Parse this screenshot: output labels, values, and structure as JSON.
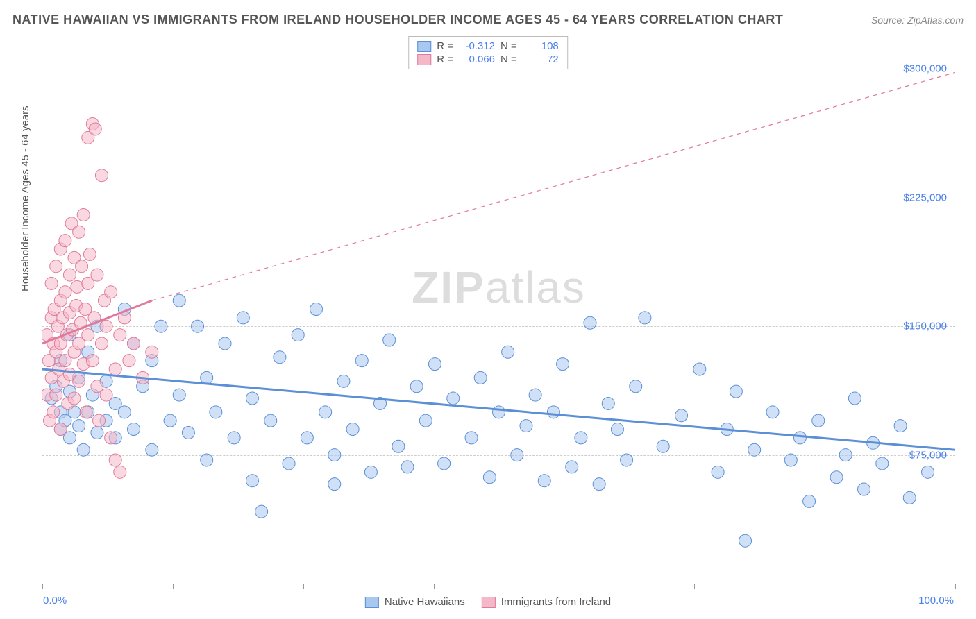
{
  "title": "NATIVE HAWAIIAN VS IMMIGRANTS FROM IRELAND HOUSEHOLDER INCOME AGES 45 - 64 YEARS CORRELATION CHART",
  "source": "Source: ZipAtlas.com",
  "ylabel": "Householder Income Ages 45 - 64 years",
  "watermark_bold": "ZIP",
  "watermark_light": "atlas",
  "chart": {
    "type": "scatter",
    "xlim": [
      0,
      100
    ],
    "ylim": [
      0,
      320000
    ],
    "y_gridlines": [
      75000,
      150000,
      225000,
      300000
    ],
    "y_tick_labels": [
      "$75,000",
      "$150,000",
      "$225,000",
      "$300,000"
    ],
    "x_tick_labels": [
      "0.0%",
      "100.0%"
    ],
    "x_vticks_pct": [
      0,
      14.3,
      28.6,
      42.9,
      57.1,
      71.4,
      85.7,
      100
    ],
    "background_color": "#ffffff",
    "grid_color": "#cccccc",
    "axis_color": "#999999",
    "tick_label_color": "#4a80e8",
    "series": [
      {
        "name": "Native Hawaiians",
        "color_fill": "#a9c8f0",
        "color_stroke": "#5b8fd6",
        "marker_radius": 9,
        "fill_opacity": 0.55,
        "R": "-0.312",
        "N": "108",
        "trend": {
          "x1": 0,
          "y1": 125000,
          "x2": 100,
          "y2": 78000,
          "dash": "none",
          "width": 3
        },
        "points": [
          [
            1,
            108000
          ],
          [
            1.5,
            115000
          ],
          [
            2,
            100000
          ],
          [
            2,
            90000
          ],
          [
            2,
            130000
          ],
          [
            2.5,
            95000
          ],
          [
            3,
            112000
          ],
          [
            3,
            85000
          ],
          [
            3,
            145000
          ],
          [
            3.5,
            100000
          ],
          [
            4,
            92000
          ],
          [
            4,
            120000
          ],
          [
            4.5,
            78000
          ],
          [
            5,
            100000
          ],
          [
            5,
            135000
          ],
          [
            5.5,
            110000
          ],
          [
            6,
            88000
          ],
          [
            6,
            150000
          ],
          [
            7,
            95000
          ],
          [
            7,
            118000
          ],
          [
            8,
            105000
          ],
          [
            8,
            85000
          ],
          [
            9,
            160000
          ],
          [
            9,
            100000
          ],
          [
            10,
            140000
          ],
          [
            10,
            90000
          ],
          [
            11,
            115000
          ],
          [
            12,
            130000
          ],
          [
            12,
            78000
          ],
          [
            13,
            150000
          ],
          [
            14,
            95000
          ],
          [
            15,
            165000
          ],
          [
            15,
            110000
          ],
          [
            16,
            88000
          ],
          [
            17,
            150000
          ],
          [
            18,
            120000
          ],
          [
            18,
            72000
          ],
          [
            19,
            100000
          ],
          [
            20,
            140000
          ],
          [
            21,
            85000
          ],
          [
            22,
            155000
          ],
          [
            23,
            108000
          ],
          [
            23,
            60000
          ],
          [
            24,
            42000
          ],
          [
            25,
            95000
          ],
          [
            26,
            132000
          ],
          [
            27,
            70000
          ],
          [
            28,
            145000
          ],
          [
            29,
            85000
          ],
          [
            30,
            160000
          ],
          [
            31,
            100000
          ],
          [
            32,
            75000
          ],
          [
            32,
            58000
          ],
          [
            33,
            118000
          ],
          [
            34,
            90000
          ],
          [
            35,
            130000
          ],
          [
            36,
            65000
          ],
          [
            37,
            105000
          ],
          [
            38,
            142000
          ],
          [
            39,
            80000
          ],
          [
            40,
            68000
          ],
          [
            41,
            115000
          ],
          [
            42,
            95000
          ],
          [
            43,
            128000
          ],
          [
            44,
            70000
          ],
          [
            45,
            108000
          ],
          [
            47,
            85000
          ],
          [
            48,
            120000
          ],
          [
            49,
            62000
          ],
          [
            50,
            100000
          ],
          [
            51,
            135000
          ],
          [
            52,
            75000
          ],
          [
            53,
            92000
          ],
          [
            54,
            110000
          ],
          [
            55,
            60000
          ],
          [
            56,
            100000
          ],
          [
            57,
            128000
          ],
          [
            58,
            68000
          ],
          [
            59,
            85000
          ],
          [
            60,
            152000
          ],
          [
            61,
            58000
          ],
          [
            62,
            105000
          ],
          [
            63,
            90000
          ],
          [
            64,
            72000
          ],
          [
            65,
            115000
          ],
          [
            66,
            155000
          ],
          [
            68,
            80000
          ],
          [
            70,
            98000
          ],
          [
            72,
            125000
          ],
          [
            74,
            65000
          ],
          [
            75,
            90000
          ],
          [
            76,
            112000
          ],
          [
            77,
            25000
          ],
          [
            78,
            78000
          ],
          [
            80,
            100000
          ],
          [
            82,
            72000
          ],
          [
            83,
            85000
          ],
          [
            84,
            48000
          ],
          [
            85,
            95000
          ],
          [
            87,
            62000
          ],
          [
            88,
            75000
          ],
          [
            89,
            108000
          ],
          [
            90,
            55000
          ],
          [
            91,
            82000
          ],
          [
            92,
            70000
          ],
          [
            94,
            92000
          ],
          [
            95,
            50000
          ],
          [
            97,
            65000
          ]
        ]
      },
      {
        "name": "Immigrants from Ireland",
        "color_fill": "#f5b8c8",
        "color_stroke": "#e07a9a",
        "marker_radius": 9,
        "fill_opacity": 0.55,
        "R": "0.066",
        "N": "72",
        "trend_solid": {
          "x1": 0,
          "y1": 140000,
          "x2": 12,
          "y2": 165000,
          "width": 3
        },
        "trend_dash": {
          "x1": 12,
          "y1": 165000,
          "x2": 100,
          "y2": 298000,
          "width": 1.2
        },
        "points": [
          [
            0.5,
            110000
          ],
          [
            0.5,
            145000
          ],
          [
            0.7,
            130000
          ],
          [
            0.8,
            95000
          ],
          [
            1,
            155000
          ],
          [
            1,
            120000
          ],
          [
            1,
            175000
          ],
          [
            1.2,
            140000
          ],
          [
            1.2,
            100000
          ],
          [
            1.3,
            160000
          ],
          [
            1.5,
            135000
          ],
          [
            1.5,
            185000
          ],
          [
            1.5,
            110000
          ],
          [
            1.7,
            150000
          ],
          [
            1.8,
            125000
          ],
          [
            2,
            165000
          ],
          [
            2,
            140000
          ],
          [
            2,
            195000
          ],
          [
            2,
            90000
          ],
          [
            2.2,
            155000
          ],
          [
            2.3,
            118000
          ],
          [
            2.5,
            170000
          ],
          [
            2.5,
            130000
          ],
          [
            2.5,
            200000
          ],
          [
            2.7,
            145000
          ],
          [
            2.8,
            105000
          ],
          [
            3,
            180000
          ],
          [
            3,
            158000
          ],
          [
            3,
            122000
          ],
          [
            3.2,
            210000
          ],
          [
            3.3,
            148000
          ],
          [
            3.5,
            135000
          ],
          [
            3.5,
            190000
          ],
          [
            3.5,
            108000
          ],
          [
            3.7,
            162000
          ],
          [
            3.8,
            173000
          ],
          [
            4,
            140000
          ],
          [
            4,
            205000
          ],
          [
            4,
            118000
          ],
          [
            4.2,
            152000
          ],
          [
            4.3,
            185000
          ],
          [
            4.5,
            128000
          ],
          [
            4.5,
            215000
          ],
          [
            4.7,
            160000
          ],
          [
            4.8,
            100000
          ],
          [
            5,
            175000
          ],
          [
            5,
            145000
          ],
          [
            5,
            260000
          ],
          [
            5.2,
            192000
          ],
          [
            5.5,
            130000
          ],
          [
            5.5,
            268000
          ],
          [
            5.7,
            155000
          ],
          [
            5.8,
            265000
          ],
          [
            6,
            115000
          ],
          [
            6,
            180000
          ],
          [
            6.2,
            95000
          ],
          [
            6.5,
            140000
          ],
          [
            6.5,
            238000
          ],
          [
            6.8,
            165000
          ],
          [
            7,
            110000
          ],
          [
            7,
            150000
          ],
          [
            7.5,
            85000
          ],
          [
            7.5,
            170000
          ],
          [
            8,
            125000
          ],
          [
            8,
            72000
          ],
          [
            8.5,
            145000
          ],
          [
            8.5,
            65000
          ],
          [
            9,
            155000
          ],
          [
            9.5,
            130000
          ],
          [
            10,
            140000
          ],
          [
            11,
            120000
          ],
          [
            12,
            135000
          ]
        ]
      }
    ]
  },
  "stats_box": {
    "rows": [
      {
        "swatch_fill": "#a9c8f0",
        "swatch_stroke": "#5b8fd6",
        "R_label": "R =",
        "R": "-0.312",
        "N_label": "N =",
        "N": "108"
      },
      {
        "swatch_fill": "#f5b8c8",
        "swatch_stroke": "#e07a9a",
        "R_label": "R =",
        "R": "0.066",
        "N_label": "N =",
        "N": "72"
      }
    ]
  },
  "legend": {
    "items": [
      {
        "swatch_fill": "#a9c8f0",
        "swatch_stroke": "#5b8fd6",
        "label": "Native Hawaiians"
      },
      {
        "swatch_fill": "#f5b8c8",
        "swatch_stroke": "#e07a9a",
        "label": "Immigrants from Ireland"
      }
    ]
  }
}
